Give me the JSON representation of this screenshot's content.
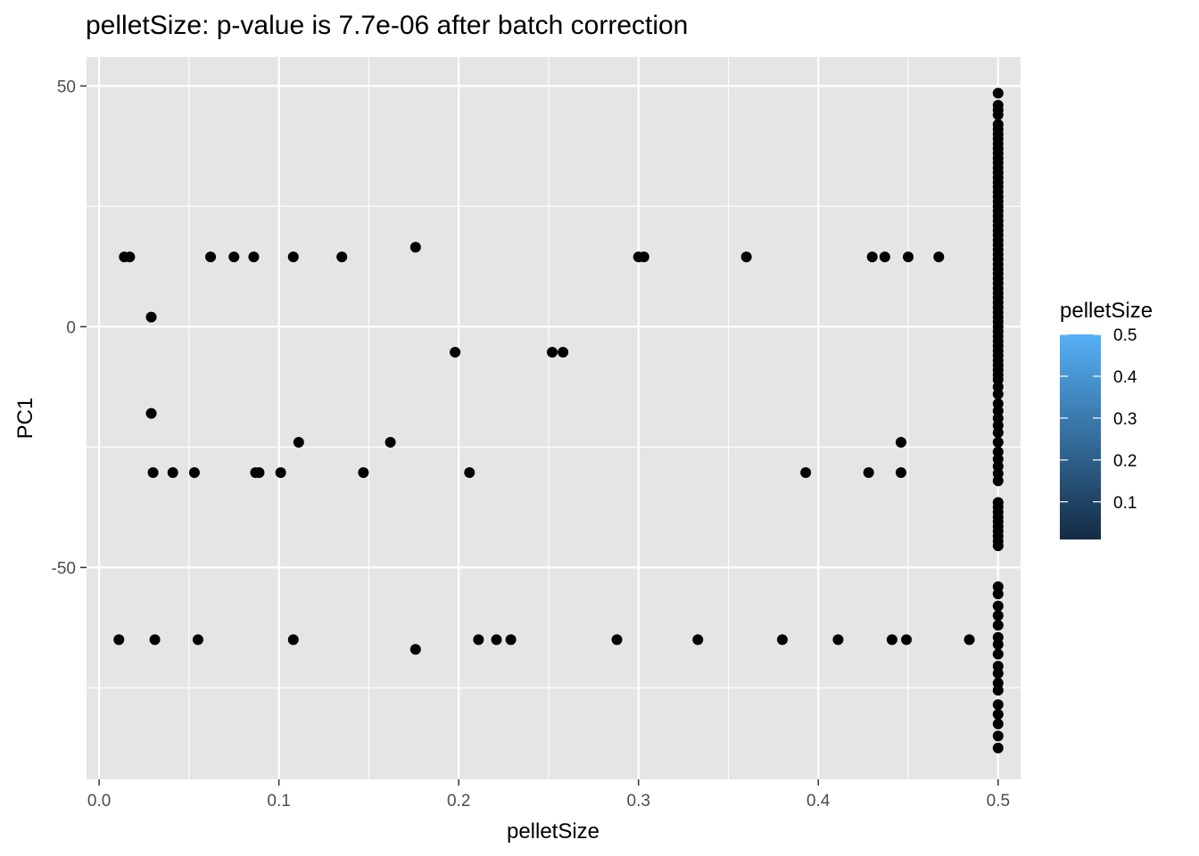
{
  "chart_data": {
    "type": "scatter",
    "title": "pelletSize: p-value is 7.7e-06 after batch correction",
    "xlabel": "pelletSize",
    "ylabel": "PC1",
    "xlim": [
      -0.007,
      0.5125
    ],
    "ylim": [
      -94,
      56
    ],
    "x_ticks": [
      0.0,
      0.1,
      0.2,
      0.3,
      0.4,
      0.5
    ],
    "x_tick_labels": [
      "0.0",
      "0.1",
      "0.2",
      "0.3",
      "0.4",
      "0.5"
    ],
    "y_ticks": [
      50,
      0,
      -50
    ],
    "y_tick_labels": [
      "50",
      "0",
      "-50"
    ],
    "grid": true,
    "panel_background": "#e5e5e5",
    "grid_color": "#ffffff",
    "point_color": "#000000",
    "legend": {
      "title": "pelletSize",
      "position": "right",
      "type": "colorbar",
      "labels": [
        "0.5",
        "0.4",
        "0.3",
        "0.2",
        "0.1"
      ],
      "values": [
        0.5,
        0.4,
        0.3,
        0.2,
        0.1
      ],
      "range": [
        0.01,
        0.5
      ],
      "color_low": "#132b43",
      "color_high": "#56b1f7"
    },
    "points": [
      [
        0.014,
        14.5
      ],
      [
        0.017,
        14.5
      ],
      [
        0.062,
        14.5
      ],
      [
        0.075,
        14.5
      ],
      [
        0.086,
        14.5
      ],
      [
        0.108,
        14.5
      ],
      [
        0.135,
        14.5
      ],
      [
        0.176,
        16.5
      ],
      [
        0.3,
        14.5
      ],
      [
        0.303,
        14.5
      ],
      [
        0.36,
        14.5
      ],
      [
        0.43,
        14.5
      ],
      [
        0.437,
        14.5
      ],
      [
        0.45,
        14.5
      ],
      [
        0.467,
        14.5
      ],
      [
        0.029,
        2.0
      ],
      [
        0.198,
        -5.3
      ],
      [
        0.252,
        -5.3
      ],
      [
        0.258,
        -5.3
      ],
      [
        0.029,
        -18.0
      ],
      [
        0.111,
        -24.0
      ],
      [
        0.162,
        -24.0
      ],
      [
        0.446,
        -24.0
      ],
      [
        0.03,
        -30.3
      ],
      [
        0.041,
        -30.3
      ],
      [
        0.053,
        -30.3
      ],
      [
        0.087,
        -30.3
      ],
      [
        0.089,
        -30.3
      ],
      [
        0.101,
        -30.3
      ],
      [
        0.147,
        -30.3
      ],
      [
        0.206,
        -30.3
      ],
      [
        0.393,
        -30.3
      ],
      [
        0.428,
        -30.3
      ],
      [
        0.446,
        -30.3
      ],
      [
        0.011,
        -65.0
      ],
      [
        0.031,
        -65.0
      ],
      [
        0.055,
        -65.0
      ],
      [
        0.108,
        -65.0
      ],
      [
        0.211,
        -65.0
      ],
      [
        0.221,
        -65.0
      ],
      [
        0.229,
        -65.0
      ],
      [
        0.288,
        -65.0
      ],
      [
        0.333,
        -65.0
      ],
      [
        0.38,
        -65.0
      ],
      [
        0.411,
        -65.0
      ],
      [
        0.441,
        -65.0
      ],
      [
        0.449,
        -65.0
      ],
      [
        0.484,
        -65.0
      ],
      [
        0.176,
        -67.0
      ],
      [
        0.5,
        48.5
      ],
      [
        0.5,
        46.0
      ],
      [
        0.5,
        45.0
      ],
      [
        0.5,
        44.0
      ],
      [
        0.5,
        42.0
      ],
      [
        0.5,
        41.0
      ],
      [
        0.5,
        40.0
      ],
      [
        0.5,
        39.0
      ],
      [
        0.5,
        38.0
      ],
      [
        0.5,
        37.0
      ],
      [
        0.5,
        36.0
      ],
      [
        0.5,
        35.0
      ],
      [
        0.5,
        34.0
      ],
      [
        0.5,
        33.0
      ],
      [
        0.5,
        32.0
      ],
      [
        0.5,
        31.0
      ],
      [
        0.5,
        30.0
      ],
      [
        0.5,
        29.0
      ],
      [
        0.5,
        28.0
      ],
      [
        0.5,
        27.0
      ],
      [
        0.5,
        26.0
      ],
      [
        0.5,
        25.0
      ],
      [
        0.5,
        24.0
      ],
      [
        0.5,
        23.0
      ],
      [
        0.5,
        22.0
      ],
      [
        0.5,
        21.0
      ],
      [
        0.5,
        20.0
      ],
      [
        0.5,
        19.0
      ],
      [
        0.5,
        18.0
      ],
      [
        0.5,
        17.0
      ],
      [
        0.5,
        16.0
      ],
      [
        0.5,
        15.0
      ],
      [
        0.5,
        14.0
      ],
      [
        0.5,
        13.0
      ],
      [
        0.5,
        12.0
      ],
      [
        0.5,
        11.0
      ],
      [
        0.5,
        10.0
      ],
      [
        0.5,
        9.0
      ],
      [
        0.5,
        8.0
      ],
      [
        0.5,
        7.0
      ],
      [
        0.5,
        6.0
      ],
      [
        0.5,
        5.0
      ],
      [
        0.5,
        4.0
      ],
      [
        0.5,
        3.0
      ],
      [
        0.5,
        2.0
      ],
      [
        0.5,
        1.0
      ],
      [
        0.5,
        0.0
      ],
      [
        0.5,
        -1.0
      ],
      [
        0.5,
        -2.0
      ],
      [
        0.5,
        -3.0
      ],
      [
        0.5,
        -4.0
      ],
      [
        0.5,
        -5.0
      ],
      [
        0.5,
        -6.0
      ],
      [
        0.5,
        -7.0
      ],
      [
        0.5,
        -8.0
      ],
      [
        0.5,
        -9.0
      ],
      [
        0.5,
        -10.0
      ],
      [
        0.5,
        -11.0
      ],
      [
        0.5,
        -12.5
      ],
      [
        0.5,
        -14.0
      ],
      [
        0.5,
        -16.0
      ],
      [
        0.5,
        -17.5
      ],
      [
        0.5,
        -19.0
      ],
      [
        0.5,
        -20.5
      ],
      [
        0.5,
        -22.0
      ],
      [
        0.5,
        -24.0
      ],
      [
        0.5,
        -26.0
      ],
      [
        0.5,
        -27.5
      ],
      [
        0.5,
        -29.0
      ],
      [
        0.5,
        -30.5
      ],
      [
        0.5,
        -32.0
      ],
      [
        0.5,
        -36.5
      ],
      [
        0.5,
        -37.5
      ],
      [
        0.5,
        -38.5
      ],
      [
        0.5,
        -39.5
      ],
      [
        0.5,
        -40.5
      ],
      [
        0.5,
        -41.5
      ],
      [
        0.5,
        -42.5
      ],
      [
        0.5,
        -43.5
      ],
      [
        0.5,
        -44.5
      ],
      [
        0.5,
        -45.5
      ],
      [
        0.5,
        -54.0
      ],
      [
        0.5,
        -55.5
      ],
      [
        0.5,
        -58.0
      ],
      [
        0.5,
        -60.0
      ],
      [
        0.5,
        -62.0
      ],
      [
        0.5,
        -64.5
      ],
      [
        0.5,
        -66.0
      ],
      [
        0.5,
        -68.0
      ],
      [
        0.5,
        -70.5
      ],
      [
        0.5,
        -72.0
      ],
      [
        0.5,
        -74.0
      ],
      [
        0.5,
        -75.5
      ],
      [
        0.5,
        -78.5
      ],
      [
        0.5,
        -80.5
      ],
      [
        0.5,
        -82.5
      ],
      [
        0.5,
        -85.0
      ],
      [
        0.5,
        -87.5
      ]
    ]
  }
}
